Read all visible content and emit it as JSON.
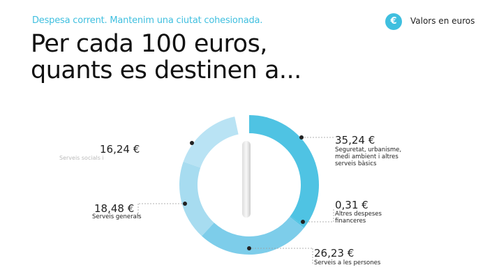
{
  "subtitle": "Despesa corrent. Mantenim una ciutat cohesionada.",
  "title_lines": [
    "Per cada 100 euros,",
    "quants es destinen a..."
  ],
  "legend": {
    "icon": "€",
    "text": "Valors en euros"
  },
  "chart_data": {
    "type": "pie",
    "donut": true,
    "categories": [
      "Seguretat, urbanisme, medi ambient i altres serveis bàsics",
      "Altres despeses financeres",
      "Serveis a les persones",
      "Serveis generals",
      "Serveis socials i"
    ],
    "values": [
      35.24,
      0.31,
      26.23,
      18.48,
      16.24
    ],
    "value_labels": [
      "35,24 €",
      "0,31 €",
      "26,23 €",
      "18,48 €",
      "16,24 €"
    ],
    "colors": [
      "#4fc3e3",
      "#4fc3e3",
      "#7dcdea",
      "#a7dcf0",
      "#b9e3f4"
    ]
  }
}
